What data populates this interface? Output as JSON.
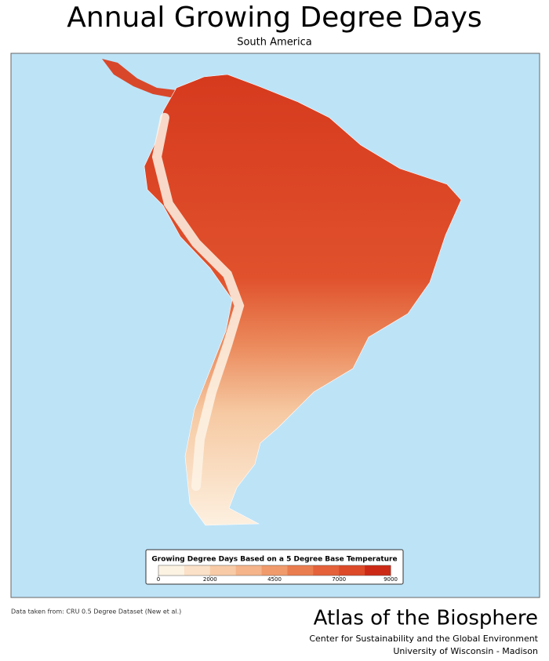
{
  "header": {
    "title": "Annual Growing Degree Days",
    "subtitle": "South America"
  },
  "legend": {
    "title": "Growing Degree Days Based on a 5 Degree Base Temperature",
    "ticks": [
      0,
      2000,
      4500,
      7000,
      9000
    ],
    "colors": [
      "#fdf3e3",
      "#fbe1c8",
      "#f8cba6",
      "#f5b48a",
      "#f09a6c",
      "#ea7d4f",
      "#e4613a",
      "#dc4a2a",
      "#cc2a16"
    ]
  },
  "source": "Data taken from: CRU 0.5 Degree Dataset (New et al.)",
  "footer": {
    "title": "Atlas of the Biosphere",
    "line1": "Center for Sustainability and the Global Environment",
    "line2": "University of Wisconsin - Madison"
  }
}
